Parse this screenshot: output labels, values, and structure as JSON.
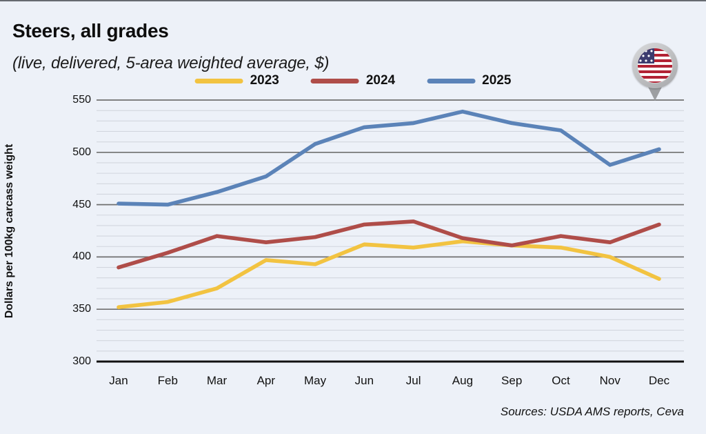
{
  "header": {
    "title": "Steers, all grades",
    "subtitle": "(live, delivered, 5-area weighted average, $)"
  },
  "legend": {
    "items": [
      {
        "label": "2023",
        "color": "#F2C341"
      },
      {
        "label": "2024",
        "color": "#AF4D49"
      },
      {
        "label": "2025",
        "color": "#5B83B8"
      }
    ]
  },
  "chart_data": {
    "type": "line",
    "title": "Steers, all grades",
    "subtitle": "(live, delivered, 5-area weighted average, $)",
    "categories": [
      "Jan",
      "Feb",
      "Mar",
      "Apr",
      "May",
      "Jun",
      "Jul",
      "Aug",
      "Sep",
      "Oct",
      "Nov",
      "Dec"
    ],
    "series": [
      {
        "name": "2023",
        "color": "#F2C341",
        "values": [
          352,
          357,
          370,
          397,
          393,
          412,
          409,
          415,
          411,
          409,
          400,
          379
        ]
      },
      {
        "name": "2024",
        "color": "#AF4D49",
        "values": [
          390,
          404,
          420,
          414,
          419,
          431,
          434,
          418,
          411,
          420,
          414,
          431
        ]
      },
      {
        "name": "2025",
        "color": "#5B83B8",
        "values": [
          451,
          450,
          462,
          477,
          508,
          524,
          528,
          539,
          528,
          521,
          488,
          503
        ]
      }
    ],
    "xlabel": "",
    "ylabel": "Dollars per 100kg carcass weight",
    "ylim": [
      300,
      550
    ],
    "yticks": [
      300,
      350,
      400,
      450,
      500,
      550
    ],
    "minor_ytick_interval": 10,
    "grid": true,
    "legend_position": "top"
  },
  "footer": {
    "source": "Sources: USDA AMS reports, Ceva"
  },
  "icons": {
    "flag_pin": "us-flag-map-pin"
  },
  "colors": {
    "background": "#EDF1F8",
    "major_gridline": "#6F6F6F",
    "minor_gridline": "#D2D6DE",
    "baseline_axis": "#111111",
    "text": "#111111"
  }
}
